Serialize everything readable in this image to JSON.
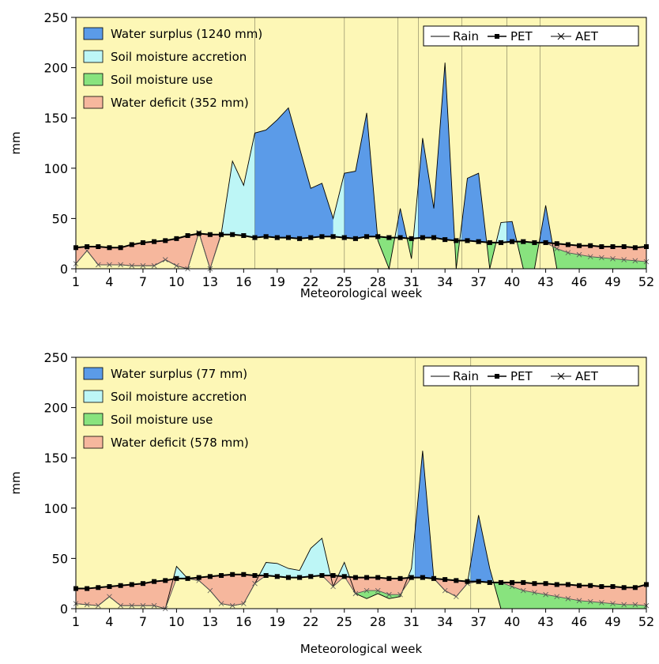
{
  "charts": [
    {
      "legend": {
        "water_surplus": "Water surplus (1240 mm)",
        "accretion": "Soil moisture accretion",
        "use": "Soil moisture use",
        "deficit": "Water deficit (352 mm)"
      },
      "line_legend": {
        "rain": "Rain",
        "pet": "PET",
        "aet": "AET"
      },
      "xlabel": "Meteorological week",
      "ylabel": "mm"
    },
    {
      "legend": {
        "water_surplus": "Water surplus (77 mm)",
        "accretion": "Soil moisture accretion",
        "use": "Soil moisture use",
        "deficit": "Water deficit (578 mm)"
      },
      "line_legend": {
        "rain": "Rain",
        "pet": "PET",
        "aet": "AET"
      },
      "xlabel": "Meteorological week",
      "ylabel": "mm"
    }
  ],
  "colors": {
    "plot_bg": "#fdf7b6",
    "surplus": "#5b9be8",
    "accretion": "#bdf6f6",
    "use": "#88e37e",
    "deficit": "#f6b79d",
    "line": "#000000"
  },
  "chart_data": [
    {
      "type": "area",
      "x": [
        1,
        2,
        3,
        4,
        5,
        6,
        7,
        8,
        9,
        10,
        11,
        12,
        13,
        14,
        15,
        16,
        17,
        18,
        19,
        20,
        21,
        22,
        23,
        24,
        25,
        26,
        27,
        28,
        29,
        30,
        31,
        32,
        33,
        34,
        35,
        36,
        37,
        38,
        39,
        40,
        41,
        42,
        43,
        44,
        45,
        46,
        47,
        48,
        49,
        50,
        51,
        52
      ],
      "xticks": [
        1,
        4,
        7,
        10,
        13,
        16,
        19,
        22,
        25,
        28,
        31,
        34,
        37,
        40,
        43,
        46,
        49,
        52
      ],
      "xlim": [
        1,
        52
      ],
      "ylim": [
        0,
        250
      ],
      "yticks": [
        0,
        50,
        100,
        150,
        200,
        250
      ],
      "series": [
        {
          "name": "Rain",
          "values": [
            5,
            18,
            4,
            4,
            4,
            3,
            3,
            3,
            9,
            3,
            0,
            36,
            0,
            35,
            107,
            83,
            135,
            138,
            148,
            160,
            120,
            80,
            85,
            50,
            95,
            97,
            155,
            28,
            0,
            60,
            10,
            130,
            60,
            205,
            0,
            90,
            95,
            0,
            46,
            47,
            0,
            0,
            63,
            0,
            0,
            0,
            0,
            0,
            0,
            0,
            0,
            0
          ]
        },
        {
          "name": "PET",
          "values": [
            21,
            22,
            22,
            21,
            21,
            24,
            26,
            27,
            28,
            30,
            33,
            35,
            34,
            34,
            34,
            33,
            31,
            32,
            31,
            31,
            30,
            31,
            32,
            32,
            31,
            30,
            32,
            32,
            31,
            31,
            30,
            31,
            31,
            29,
            28,
            28,
            27,
            26,
            26,
            27,
            27,
            26,
            26,
            25,
            24,
            23,
            23,
            22,
            22,
            22,
            21,
            22
          ]
        },
        {
          "name": "AET",
          "values": [
            5,
            18,
            4,
            4,
            4,
            3,
            3,
            3,
            9,
            3,
            0,
            36,
            0,
            34,
            34,
            33,
            31,
            32,
            31,
            31,
            30,
            31,
            32,
            32,
            31,
            30,
            32,
            32,
            31,
            31,
            30,
            31,
            31,
            29,
            28,
            28,
            27,
            26,
            26,
            27,
            27,
            26,
            26,
            20,
            16,
            14,
            12,
            11,
            10,
            9,
            8,
            7
          ]
        }
      ],
      "legend": [
        "Water surplus (1240 mm)",
        "Soil moisture accretion",
        "Soil moisture use",
        "Water deficit (352 mm)",
        "Rain",
        "PET",
        "AET"
      ],
      "xlabel": "Meteorological week",
      "ylabel": "mm",
      "legend_position": "top-left and top-right"
    },
    {
      "type": "area",
      "x": [
        1,
        2,
        3,
        4,
        5,
        6,
        7,
        8,
        9,
        10,
        11,
        12,
        13,
        14,
        15,
        16,
        17,
        18,
        19,
        20,
        21,
        22,
        23,
        24,
        25,
        26,
        27,
        28,
        29,
        30,
        31,
        32,
        33,
        34,
        35,
        36,
        37,
        38,
        39,
        40,
        41,
        42,
        43,
        44,
        45,
        46,
        47,
        48,
        49,
        50,
        51,
        52
      ],
      "xticks": [
        1,
        4,
        7,
        10,
        13,
        16,
        19,
        22,
        25,
        28,
        31,
        34,
        37,
        40,
        43,
        46,
        49,
        52
      ],
      "xlim": [
        1,
        52
      ],
      "ylim": [
        0,
        250
      ],
      "yticks": [
        0,
        50,
        100,
        150,
        200,
        250
      ],
      "series": [
        {
          "name": "Rain",
          "values": [
            5,
            4,
            3,
            12,
            3,
            3,
            3,
            3,
            0,
            42,
            30,
            28,
            18,
            5,
            3,
            5,
            25,
            46,
            45,
            40,
            38,
            60,
            70,
            22,
            46,
            15,
            10,
            15,
            10,
            12,
            40,
            157,
            30,
            18,
            12,
            25,
            93,
            40,
            0,
            0,
            0,
            0,
            0,
            0,
            0,
            0,
            0,
            0,
            0,
            0,
            0,
            0
          ]
        },
        {
          "name": "PET",
          "values": [
            20,
            20,
            21,
            22,
            23,
            24,
            25,
            27,
            28,
            30,
            30,
            31,
            32,
            33,
            34,
            34,
            33,
            33,
            32,
            31,
            31,
            32,
            33,
            33,
            32,
            31,
            31,
            31,
            30,
            30,
            31,
            31,
            30,
            29,
            28,
            27,
            27,
            26,
            26,
            26,
            26,
            25,
            25,
            24,
            24,
            23,
            23,
            22,
            22,
            21,
            21,
            24
          ]
        },
        {
          "name": "AET",
          "values": [
            5,
            4,
            3,
            12,
            3,
            3,
            3,
            3,
            0,
            30,
            30,
            28,
            18,
            5,
            3,
            5,
            25,
            33,
            32,
            31,
            31,
            32,
            33,
            22,
            32,
            15,
            18,
            18,
            14,
            14,
            31,
            31,
            30,
            18,
            12,
            25,
            27,
            26,
            26,
            22,
            18,
            16,
            14,
            12,
            10,
            8,
            7,
            6,
            5,
            4,
            4,
            3
          ]
        }
      ],
      "legend": [
        "Water surplus (77 mm)",
        "Soil moisture accretion",
        "Soil moisture use",
        "Water deficit (578 mm)",
        "Rain",
        "PET",
        "AET"
      ],
      "xlabel": "Meteorological week",
      "ylabel": "mm",
      "legend_position": "top-left and top-right"
    }
  ]
}
